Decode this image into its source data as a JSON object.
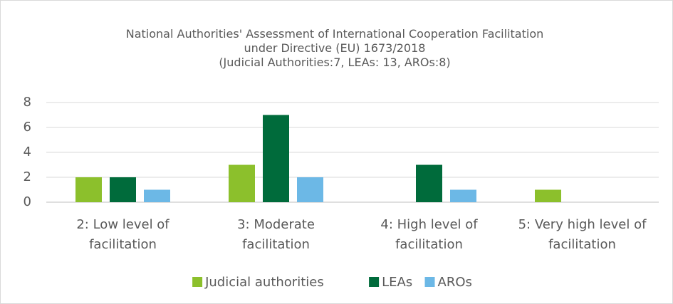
{
  "chart_data": {
    "type": "bar",
    "title": "National Authorities' Assessment of International Cooperation Facilitation under Directive (EU) 1673/2018",
    "subtitle": "(Judicial Authorities:7, LEAs: 13, AROs:8)",
    "categories": [
      "2: Low level of facilitation",
      "3: Moderate facilitation",
      "4: High level of facilitation",
      "5: Very high level of facilitation"
    ],
    "series": [
      {
        "name": "Judicial authorities",
        "color": "#8cc02c",
        "values": [
          2,
          3,
          0,
          1
        ]
      },
      {
        "name": "LEAs",
        "color": "#006b3b",
        "values": [
          2,
          7,
          3,
          0
        ]
      },
      {
        "name": "AROs",
        "color": "#6cb8e6",
        "values": [
          1,
          2,
          1,
          0
        ]
      }
    ],
    "ylim": [
      0,
      8
    ],
    "yticks": [
      0,
      2,
      4,
      6,
      8
    ],
    "grid": true,
    "legend": "bottom"
  }
}
